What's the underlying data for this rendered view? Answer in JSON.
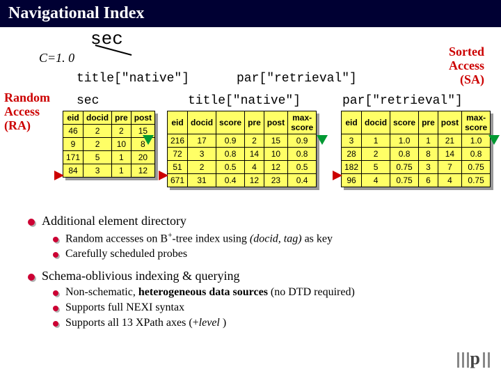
{
  "title": "Navigational Index",
  "labels": {
    "sec": "sec",
    "c": "C=1. 0",
    "title_native": "title[\"native\"]",
    "par_retrieval": "par[\"retrieval\"]",
    "sa": "Sorted\nAccess\n(SA)",
    "ra": "Random\nAccess\n(RA)"
  },
  "tableA": {
    "columns": [
      "eid",
      "docid",
      "pre",
      "post"
    ],
    "rows": [
      [
        "46",
        "2",
        "2",
        "15"
      ],
      [
        "9",
        "2",
        "10",
        "8"
      ],
      [
        "171",
        "5",
        "1",
        "20"
      ],
      [
        "84",
        "3",
        "1",
        "12"
      ]
    ]
  },
  "tableB": {
    "columns": [
      "eid",
      "docid",
      "score",
      "pre",
      "post",
      "max-\nscore"
    ],
    "rows": [
      [
        "216",
        "17",
        "0.9",
        "2",
        "15",
        "0.9"
      ],
      [
        "72",
        "3",
        "0.8",
        "14",
        "10",
        "0.8"
      ],
      [
        "51",
        "2",
        "0.5",
        "4",
        "12",
        "0.5"
      ],
      [
        "671",
        "31",
        "0.4",
        "12",
        "23",
        "0.4"
      ]
    ]
  },
  "tableC": {
    "columns": [
      "eid",
      "docid",
      "score",
      "pre",
      "post",
      "max-\nscore"
    ],
    "rows": [
      [
        "3",
        "1",
        "1.0",
        "1",
        "21",
        "1.0"
      ],
      [
        "28",
        "2",
        "0.8",
        "8",
        "14",
        "0.8"
      ],
      [
        "182",
        "5",
        "0.75",
        "3",
        "7",
        "0.75"
      ],
      [
        "96",
        "4",
        "0.75",
        "6",
        "4",
        "0.75"
      ]
    ]
  },
  "bullets": {
    "b1": "Additional element directory",
    "b1a_pre": "Random accesses on B",
    "b1a_sup": "+",
    "b1a_mid": "-tree index using ",
    "b1a_it": "(docid, tag)",
    "b1a_post": " as key",
    "b1b": "Carefully scheduled probes",
    "b2": "Schema-oblivious indexing & querying",
    "b2a_pre": "Non-schematic, ",
    "b2a_bold": "heterogeneous data sources",
    "b2a_post": " (no DTD required)",
    "b2b": "Supports full NEXI syntax",
    "b2c_pre": "Supports all 13 XPath axes (+",
    "b2c_it": "level",
    "b2c_post": " )"
  },
  "colors": {
    "table_bg": "#ffff66",
    "red": "#cc0000",
    "green": "#009933",
    "bullet": "#cc0033"
  }
}
